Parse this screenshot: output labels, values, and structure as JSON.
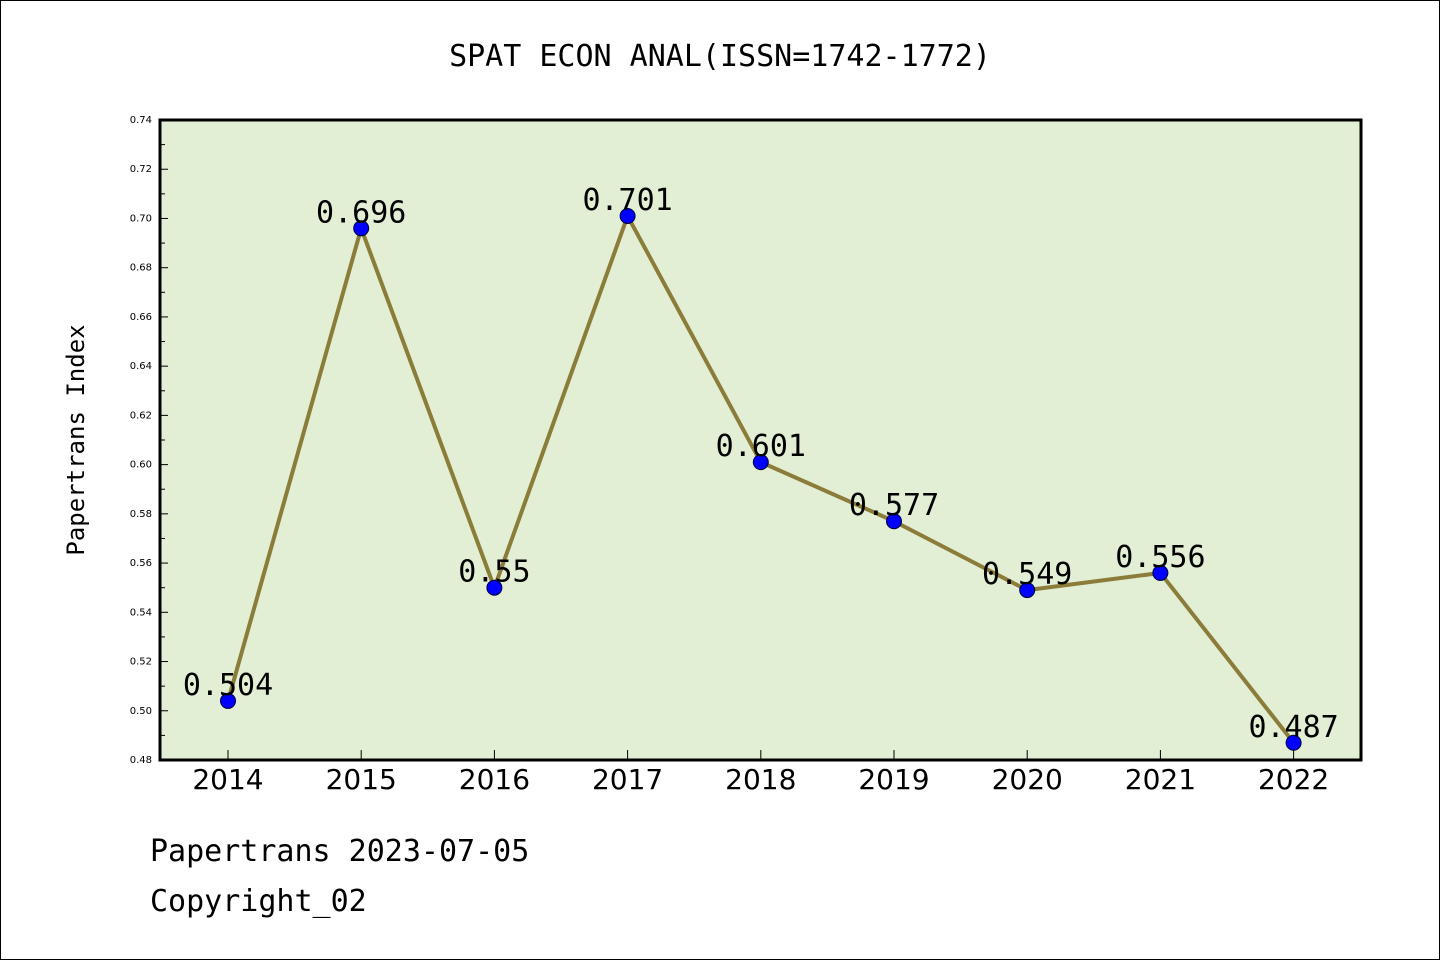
{
  "chart_data": {
    "type": "line",
    "title": "SPAT ECON ANAL(ISSN=1742-1772)",
    "xlabel": "",
    "ylabel": "Papertrans Index",
    "categories": [
      "2014",
      "2015",
      "2016",
      "2017",
      "2018",
      "2019",
      "2020",
      "2021",
      "2022"
    ],
    "series": [
      {
        "values": [
          0.504,
          0.696,
          0.55,
          0.701,
          0.601,
          0.577,
          0.549,
          0.556,
          0.487
        ],
        "data_labels": [
          "0.504",
          "0.696",
          "0.55",
          "0.701",
          "0.601",
          "0.577",
          "0.549",
          "0.556",
          "0.487"
        ],
        "line_color": "#8c7c3a",
        "marker_color": "#0000ff"
      }
    ],
    "ylim": [
      0.48,
      0.74
    ],
    "yticks": [
      "0.48",
      "0.50",
      "0.52",
      "0.54",
      "0.56",
      "0.58",
      "0.60",
      "0.62",
      "0.64",
      "0.66",
      "0.68",
      "0.70",
      "0.72",
      "0.74"
    ],
    "grid": false,
    "legend": "none",
    "plot_background": "#e2efd4"
  },
  "footer": {
    "line1": "Papertrans 2023-07-05",
    "line2": "Copyright_02"
  }
}
